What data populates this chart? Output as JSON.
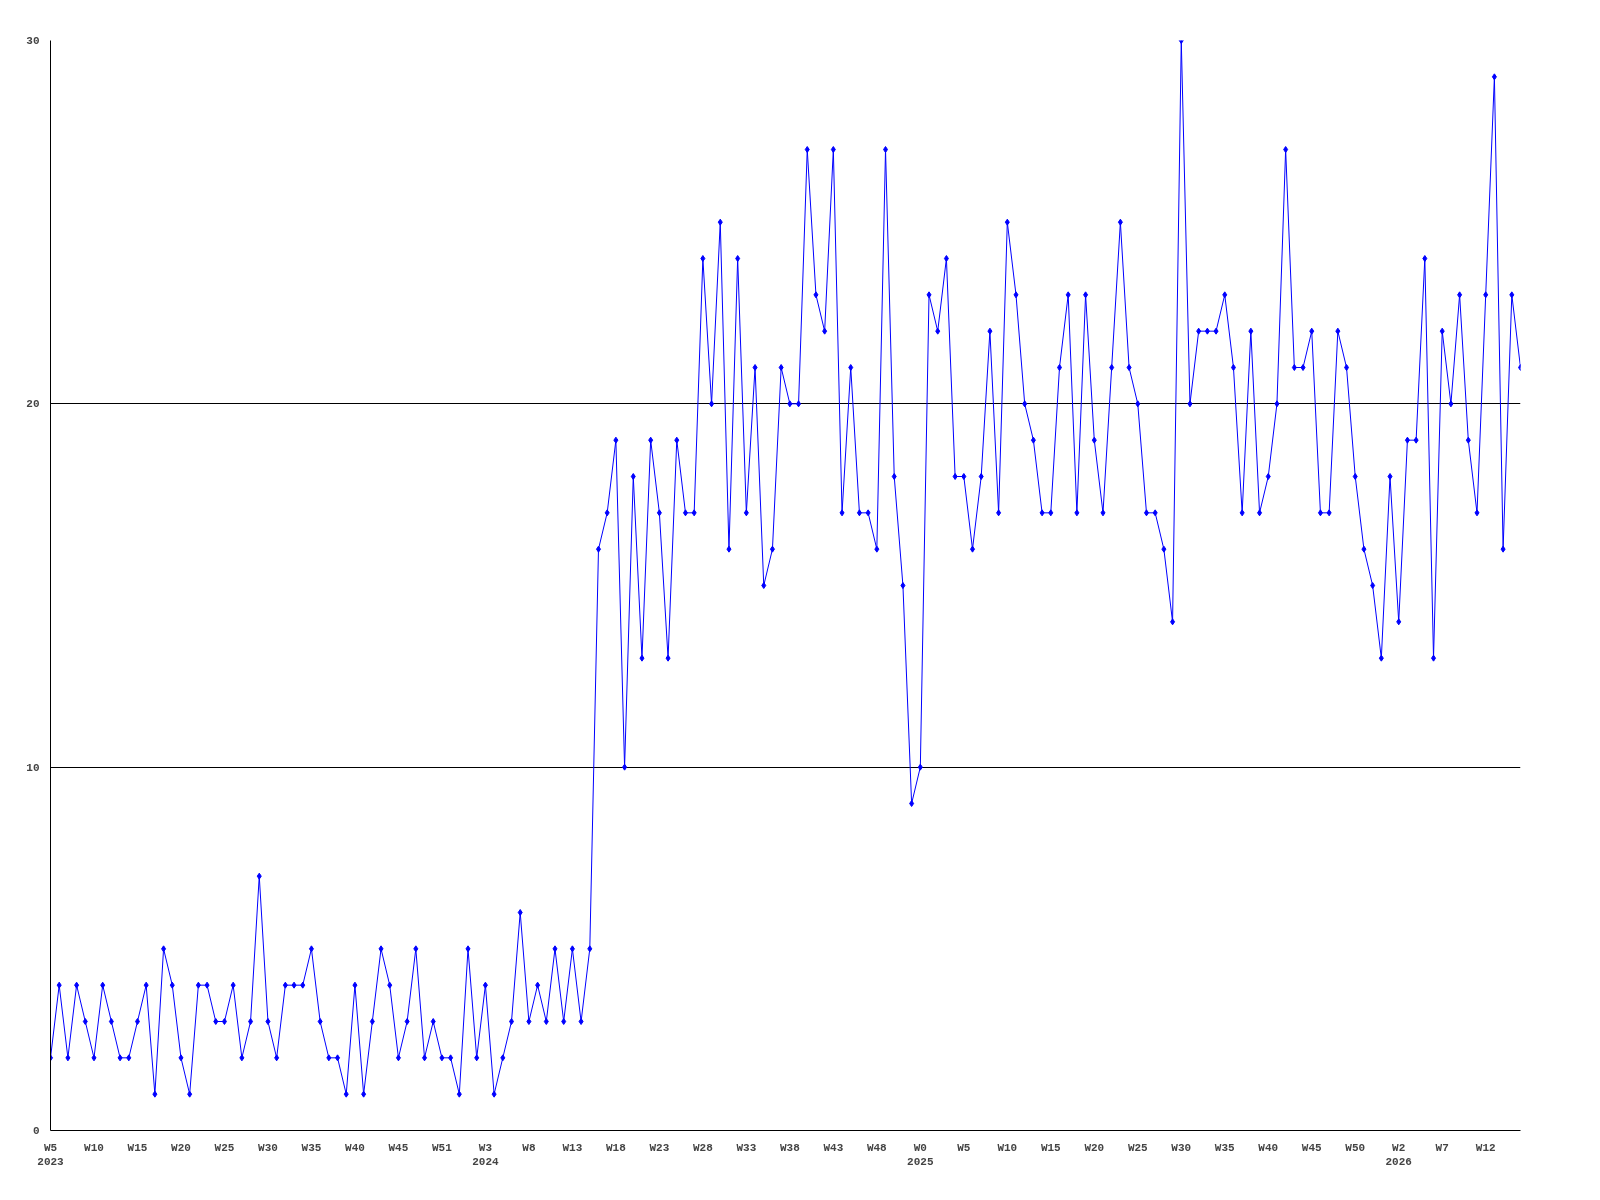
{
  "chart_data": {
    "type": "line",
    "categories": [
      "W5\n2023",
      null,
      null,
      null,
      null,
      "W10",
      null,
      null,
      null,
      null,
      "W15",
      null,
      null,
      null,
      null,
      "W20",
      null,
      null,
      null,
      null,
      "W25",
      null,
      null,
      null,
      null,
      "W30",
      null,
      null,
      null,
      null,
      "W35",
      null,
      null,
      null,
      null,
      "W40",
      null,
      null,
      null,
      null,
      "W45",
      null,
      null,
      null,
      null,
      "W51",
      null,
      null,
      null,
      null,
      "W3\n2024",
      null,
      null,
      null,
      null,
      "W8",
      null,
      null,
      null,
      null,
      "W13",
      null,
      null,
      null,
      null,
      "W18",
      null,
      null,
      null,
      null,
      "W23",
      null,
      null,
      null,
      null,
      "W28",
      null,
      null,
      null,
      null,
      "W33",
      null,
      null,
      null,
      null,
      "W38",
      null,
      null,
      null,
      null,
      "W43",
      null,
      null,
      null,
      null,
      "W48",
      null,
      null,
      null,
      null,
      "W0\n2025",
      null,
      null,
      null,
      null,
      "W5",
      null,
      null,
      null,
      null,
      "W10",
      null,
      null,
      null,
      null,
      "W15",
      null,
      null,
      null,
      null,
      "W20",
      null,
      null,
      null,
      null,
      "W25",
      null,
      null,
      null,
      null,
      "W30",
      null,
      null,
      null,
      null,
      "W35",
      null,
      null,
      null,
      null,
      "W40",
      null,
      null,
      null,
      null,
      "W45",
      null,
      null,
      null,
      null,
      "W50",
      null,
      null,
      null,
      null,
      "W2\n2026",
      null,
      null,
      null,
      null,
      "W7",
      null,
      null,
      null,
      null,
      "W12",
      null,
      null,
      null,
      null
    ],
    "series": [
      {
        "color": "#0000ff",
        "values": [
          2,
          4,
          2,
          4,
          3,
          2,
          4,
          3,
          2,
          2,
          3,
          4,
          1,
          5,
          4,
          2,
          1,
          4,
          4,
          3,
          3,
          4,
          2,
          3,
          7,
          3,
          2,
          4,
          4,
          4,
          5,
          3,
          2,
          2,
          1,
          4,
          1,
          3,
          5,
          4,
          2,
          3,
          5,
          2,
          3,
          2,
          2,
          1,
          5,
          2,
          4,
          1,
          2,
          3,
          6,
          3,
          4,
          3,
          5,
          3,
          5,
          3,
          5,
          16,
          17,
          19,
          10,
          18,
          13,
          19,
          17,
          13,
          19,
          17,
          17,
          24,
          20,
          25,
          16,
          24,
          17,
          21,
          15,
          16,
          21,
          20,
          20,
          27,
          23,
          22,
          27,
          17,
          21,
          17,
          17,
          16,
          27,
          18,
          15,
          9,
          10,
          23,
          22,
          24,
          18,
          18,
          16,
          18,
          22,
          17,
          25,
          23,
          20,
          19,
          17,
          17,
          21,
          23,
          17,
          23,
          19,
          17,
          21,
          25,
          21,
          20,
          17,
          17,
          16,
          14,
          30,
          20,
          22,
          22,
          22,
          23,
          21,
          17,
          22,
          17,
          18,
          20,
          27,
          21,
          21,
          22,
          17,
          17,
          22,
          21,
          18,
          16,
          15,
          13,
          18,
          14,
          19,
          19,
          24,
          13,
          22,
          20,
          23,
          19,
          17,
          23,
          29,
          16,
          23,
          21
        ]
      }
    ],
    "ylim": [
      0,
      30
    ],
    "yticks": [
      0,
      10,
      20,
      30
    ],
    "grid": "y",
    "marker": "diamond",
    "line_style": "solid"
  }
}
